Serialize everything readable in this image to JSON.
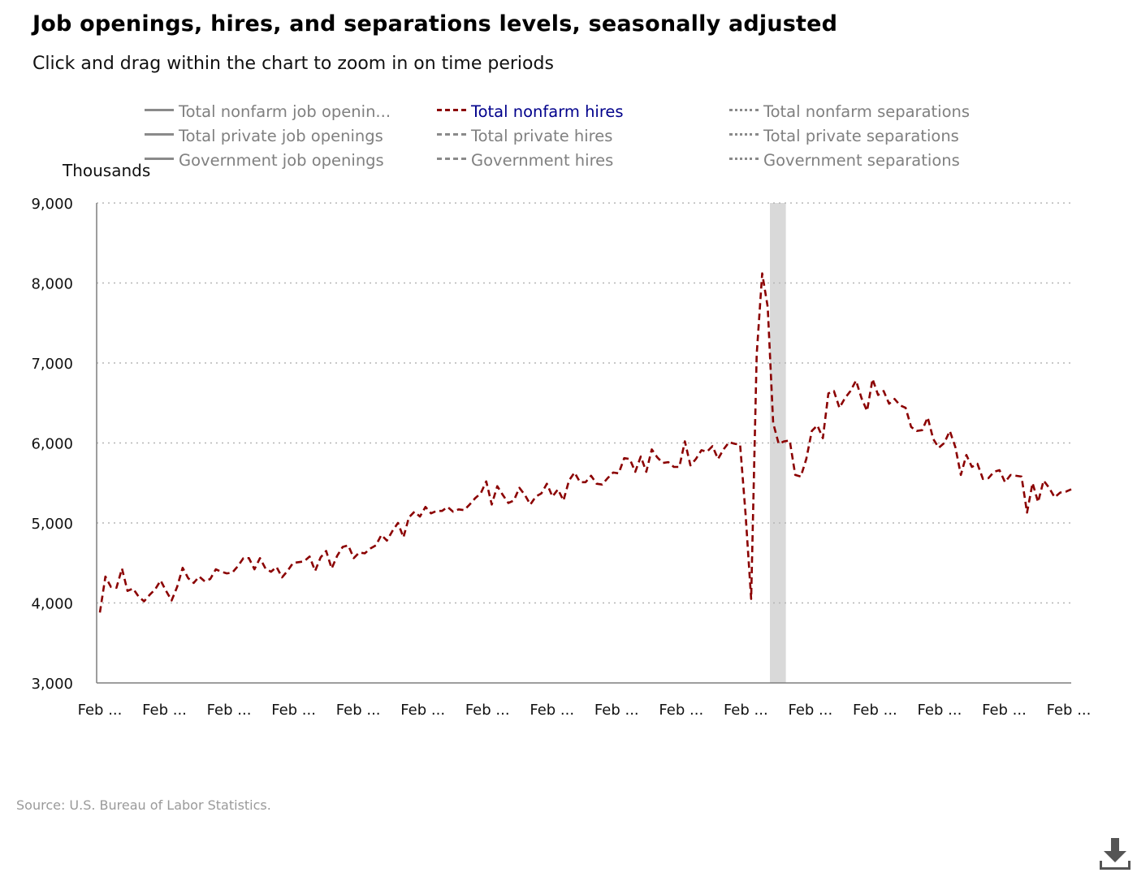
{
  "title": "Job openings, hires, and separations levels, seasonally adjusted",
  "subtitle": "Click and drag within the chart to zoom in on time periods",
  "source": "Source: U.S. Bureau of Labor Statistics.",
  "download_icon": "download-icon",
  "legend": [
    {
      "label": "Total nonfarm job openin...",
      "style": "solid",
      "active": false
    },
    {
      "label": "Total nonfarm hires",
      "style": "dash",
      "active": true
    },
    {
      "label": "Total nonfarm separations",
      "style": "dot",
      "active": false
    },
    {
      "label": "Total private job openings",
      "style": "solid",
      "active": false
    },
    {
      "label": "Total private hires",
      "style": "dash",
      "active": false
    },
    {
      "label": "Total private separations",
      "style": "dot",
      "active": false
    },
    {
      "label": "Government job openings",
      "style": "solid",
      "active": false
    },
    {
      "label": "Government hires",
      "style": "dash",
      "active": false
    },
    {
      "label": "Government separations",
      "style": "dot",
      "active": false
    }
  ],
  "colors": {
    "active_series": "#8b0000",
    "inactive": "#808080",
    "active_legend_text": "#00008b",
    "recession_band": "#d9d9d9"
  },
  "chart_data": {
    "type": "line",
    "ylabel": "Thousands",
    "ylim": [
      3000,
      9000
    ],
    "y_ticks": [
      "3,000",
      "4,000",
      "5,000",
      "6,000",
      "7,000",
      "8,000",
      "9,000"
    ],
    "x_ticks": [
      "Feb ...",
      "Feb ...",
      "Feb ...",
      "Feb ...",
      "Feb ...",
      "Feb ...",
      "Feb ...",
      "Feb ...",
      "Feb ...",
      "Feb ...",
      "Feb ...",
      "Feb ...",
      "Feb ...",
      "Feb ...",
      "Feb ...",
      "Feb ..."
    ],
    "x_tick_count": 16,
    "grid": "horizontal dotted",
    "recession_band": {
      "start_index": 122,
      "end_index": 124
    },
    "series": [
      {
        "name": "Total nonfarm hires",
        "values": [
          3880,
          4330,
          4200,
          4190,
          4430,
          4150,
          4180,
          4080,
          4020,
          4100,
          4170,
          4280,
          4150,
          4030,
          4200,
          4440,
          4310,
          4250,
          4330,
          4270,
          4300,
          4420,
          4390,
          4370,
          4380,
          4460,
          4560,
          4560,
          4420,
          4560,
          4430,
          4390,
          4450,
          4320,
          4400,
          4500,
          4510,
          4520,
          4580,
          4400,
          4570,
          4650,
          4430,
          4590,
          4700,
          4720,
          4560,
          4630,
          4620,
          4680,
          4720,
          4850,
          4780,
          4900,
          5000,
          4820,
          5070,
          5140,
          5080,
          5200,
          5120,
          5150,
          5150,
          5200,
          5140,
          5170,
          5160,
          5230,
          5310,
          5370,
          5520,
          5230,
          5460,
          5350,
          5250,
          5280,
          5440,
          5350,
          5230,
          5330,
          5370,
          5490,
          5330,
          5420,
          5280,
          5530,
          5630,
          5510,
          5510,
          5590,
          5490,
          5480,
          5560,
          5630,
          5620,
          5810,
          5800,
          5640,
          5830,
          5640,
          5920,
          5820,
          5750,
          5760,
          5700,
          5700,
          6020,
          5720,
          5800,
          5910,
          5890,
          5960,
          5800,
          5920,
          6010,
          5990,
          5980,
          5100,
          4050,
          7100,
          8120,
          7700,
          6250,
          5990,
          6020,
          6030,
          5600,
          5580,
          5800,
          6150,
          6220,
          6060,
          6620,
          6650,
          6440,
          6560,
          6650,
          6780,
          6560,
          6400,
          6800,
          6600,
          6650,
          6490,
          6550,
          6470,
          6440,
          6200,
          6150,
          6160,
          6320,
          6050,
          5940,
          6000,
          6150,
          5950,
          5600,
          5850,
          5700,
          5740,
          5550,
          5560,
          5640,
          5660,
          5510,
          5600,
          5590,
          5580,
          5130,
          5500,
          5260,
          5530,
          5440,
          5320,
          5380,
          5390,
          5420
        ]
      }
    ]
  }
}
